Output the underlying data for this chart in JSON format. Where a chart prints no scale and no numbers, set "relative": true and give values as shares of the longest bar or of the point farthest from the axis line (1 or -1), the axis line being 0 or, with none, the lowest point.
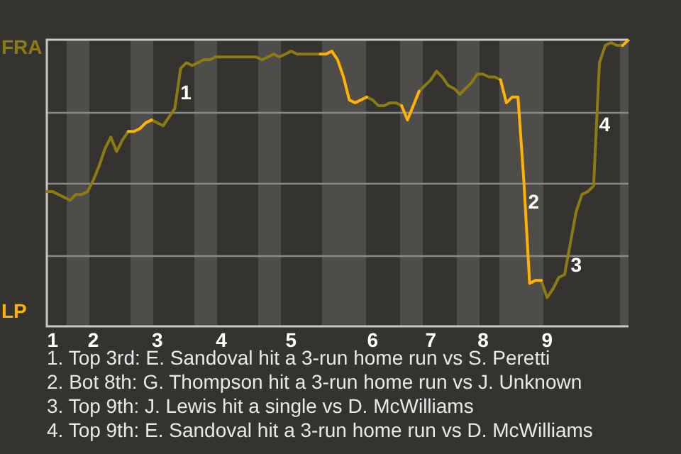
{
  "chart_data": {
    "type": "line",
    "relative": true,
    "categories": [
      null,
      "1",
      null,
      null,
      null,
      null,
      null,
      null,
      "2",
      null,
      null,
      null,
      null,
      null,
      null,
      null,
      null,
      null,
      null,
      "3",
      null,
      null,
      null,
      null,
      null,
      null,
      null,
      null,
      null,
      null,
      "4",
      null,
      null,
      null,
      null,
      null,
      null,
      null,
      null,
      null,
      null,
      null,
      "5",
      null,
      null,
      null,
      null,
      null,
      null,
      null,
      null,
      null,
      null,
      null,
      null,
      null,
      "6",
      null,
      null,
      null,
      null,
      null,
      null,
      null,
      null,
      null,
      "7",
      null,
      null,
      null,
      null,
      null,
      null,
      null,
      null,
      "8",
      null,
      null,
      null,
      null,
      null,
      null,
      null,
      null,
      null,
      null,
      "9",
      null,
      null,
      null,
      null,
      null,
      null,
      null,
      null,
      null,
      null,
      null,
      null,
      null,
      null
    ],
    "series": [
      {
        "color": "#8c7b12",
        "values": [
          0.47,
          0.47,
          0.46,
          0.45,
          0.44,
          0.46,
          0.46,
          0.47,
          0.51,
          0.56,
          0.62,
          0.66,
          0.61,
          0.65,
          0.68,
          null,
          null,
          null,
          0.72,
          0.71,
          0.7,
          0.73,
          0.76,
          0.9,
          0.92,
          0.91,
          0.92,
          0.93,
          0.93,
          0.94,
          0.94,
          0.94,
          0.94,
          0.94,
          0.94,
          0.94,
          0.94,
          0.93,
          0.94,
          0.95,
          0.94,
          0.95,
          0.96,
          0.95,
          0.95,
          0.95,
          0.95,
          0.95,
          null,
          null,
          null,
          null,
          null,
          null,
          null,
          0.8,
          0.79,
          0.77,
          0.77,
          0.78,
          0.78,
          0.77,
          null,
          null,
          0.82,
          0.84,
          0.86,
          0.89,
          0.87,
          0.84,
          0.83,
          0.81,
          0.83,
          0.85,
          0.88,
          0.88,
          0.87,
          0.87,
          0.86,
          null,
          null,
          null,
          null,
          null,
          null,
          0.16,
          0.1,
          0.13,
          0.17,
          0.18,
          0.29,
          0.4,
          0.46,
          0.47,
          0.49,
          0.92,
          0.98,
          0.99,
          0.98,
          0.98,
          null
        ]
      },
      {
        "color": "#ffb300",
        "values": [
          null,
          null,
          null,
          null,
          null,
          null,
          null,
          null,
          null,
          null,
          null,
          null,
          null,
          null,
          0.68,
          0.68,
          0.69,
          0.71,
          0.72,
          null,
          null,
          null,
          null,
          null,
          null,
          null,
          null,
          null,
          null,
          null,
          null,
          null,
          null,
          null,
          null,
          null,
          null,
          null,
          null,
          null,
          null,
          null,
          null,
          null,
          null,
          null,
          null,
          0.95,
          0.95,
          0.96,
          0.93,
          0.87,
          0.79,
          0.78,
          0.79,
          0.8,
          null,
          null,
          null,
          null,
          null,
          0.77,
          0.72,
          0.77,
          0.82,
          null,
          null,
          null,
          null,
          null,
          null,
          null,
          null,
          null,
          null,
          null,
          null,
          null,
          0.86,
          0.78,
          0.8,
          0.8,
          0.51,
          0.15,
          0.16,
          0.16,
          null,
          null,
          null,
          null,
          null,
          null,
          null,
          null,
          null,
          null,
          null,
          null,
          null,
          0.98,
          1
        ]
      }
    ],
    "grid": "y",
    "legend": false,
    "marker": "none",
    "annotations": [
      "FRA",
      "LP",
      "1",
      "2",
      "3",
      "4",
      "1. Top 3rd: E. Sandoval hit a 3-run home run vs S. Peretti",
      "2. Bot 8th: G. Thompson hit a 3-run home run vs J. Unknown",
      "3. Top 9th: J. Lewis hit a single vs D. McWilliams",
      "4. Top 9th: E. Sandoval hit a 3-run home run vs D. McWilliams"
    ]
  }
}
